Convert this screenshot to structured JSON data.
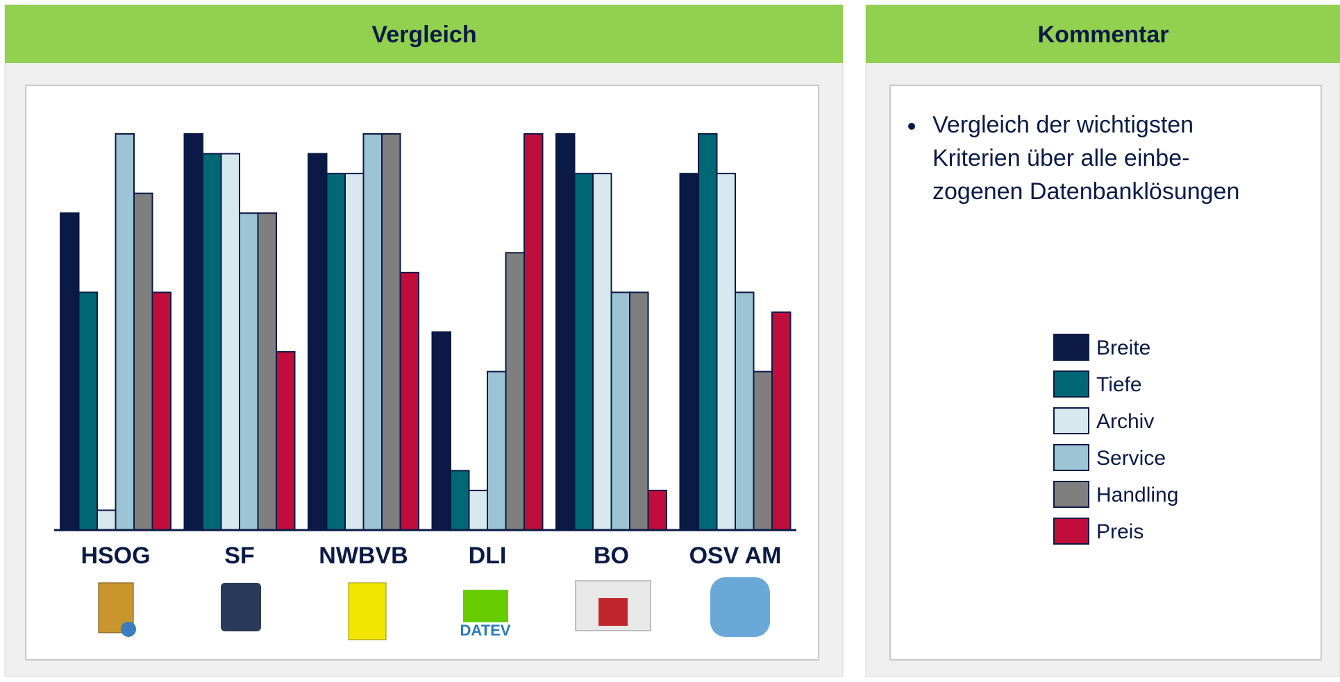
{
  "panels": {
    "left_title": "Vergleich",
    "right_title": "Kommentar"
  },
  "comment": [
    "Vergleich der wichtigsten",
    "Kriterien über alle einbe-",
    "zogenen Datenbanklösungen"
  ],
  "logo_texts": [
    "DATEV"
  ],
  "chart_data": {
    "type": "bar",
    "categories": [
      "HSOG",
      "SF",
      "NWBVB",
      "DLI",
      "BO",
      "OSV AM"
    ],
    "series": [
      {
        "name": "Breite",
        "color": "#0b1a45",
        "values": [
          16,
          20,
          19,
          10,
          20,
          18
        ]
      },
      {
        "name": "Tiefe",
        "color": "#006775",
        "values": [
          12,
          19,
          18,
          3,
          18,
          20
        ]
      },
      {
        "name": "Archiv",
        "color": "#d7e8ef",
        "values": [
          1,
          19,
          18,
          2,
          18,
          18
        ]
      },
      {
        "name": "Service",
        "color": "#9cc4d4",
        "values": [
          20,
          16,
          20,
          8,
          12,
          12
        ]
      },
      {
        "name": "Handling",
        "color": "#7f7f7f",
        "values": [
          17,
          16,
          20,
          14,
          12,
          8
        ]
      },
      {
        "name": "Preis",
        "color": "#c00d3c",
        "values": [
          12,
          9,
          13,
          20,
          2,
          11
        ]
      }
    ],
    "ylim": [
      0,
      20
    ]
  }
}
